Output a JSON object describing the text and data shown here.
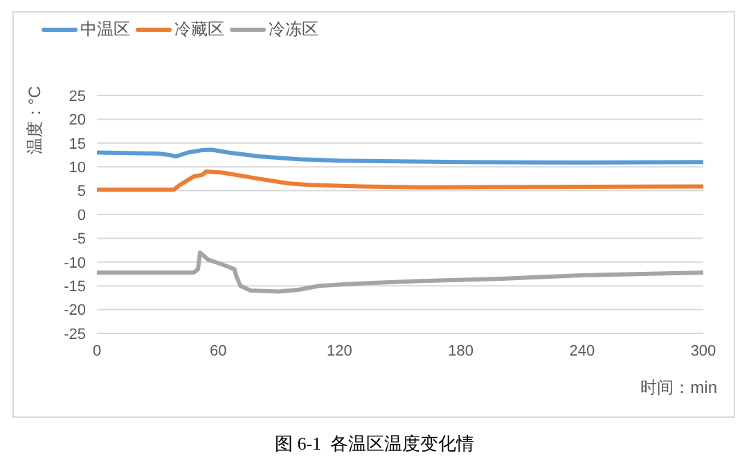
{
  "chart_data": {
    "type": "line",
    "title": "图 6-1  各温区温度变化情",
    "xlabel": "时间：min",
    "ylabel": "温度：°C",
    "xlim": [
      0,
      300
    ],
    "xticks": [
      0,
      60,
      120,
      180,
      240,
      300
    ],
    "ylim": [
      -25,
      25
    ],
    "yticks": [
      -25,
      -20,
      -15,
      -10,
      -5,
      0,
      5,
      10,
      15,
      20,
      25
    ],
    "grid": "y",
    "legend": "top left",
    "marker": "none",
    "line_style": "solid",
    "series": [
      {
        "name": "中温区",
        "color": "#5b9bd5",
        "x": [
          0,
          30,
          36,
          39,
          45,
          52,
          57,
          65,
          80,
          100,
          120,
          180,
          240,
          300
        ],
        "values": [
          13,
          12.8,
          12.5,
          12.2,
          13,
          13.5,
          13.6,
          13,
          12.2,
          11.6,
          11.3,
          11,
          10.9,
          11
        ]
      },
      {
        "name": "冷藏区",
        "color": "#ed7d31",
        "x": [
          0,
          38,
          41,
          48,
          52,
          54,
          62,
          80,
          95,
          105,
          130,
          160,
          240,
          300
        ],
        "values": [
          5.2,
          5.2,
          6.2,
          8,
          8.3,
          9,
          8.8,
          7.5,
          6.5,
          6.2,
          5.9,
          5.7,
          5.8,
          5.9
        ]
      },
      {
        "name": "冷冻区",
        "color": "#a5a5a5",
        "x": [
          0,
          48,
          50,
          51,
          55,
          62,
          68,
          69,
          71,
          76,
          90,
          100,
          110,
          130,
          160,
          200,
          240,
          300
        ],
        "values": [
          -12.2,
          -12.2,
          -11.5,
          -8,
          -9.5,
          -10.5,
          -11.5,
          -13,
          -15,
          -16,
          -16.2,
          -15.8,
          -15,
          -14.5,
          -14,
          -13.5,
          -12.8,
          -12.2
        ]
      }
    ]
  }
}
